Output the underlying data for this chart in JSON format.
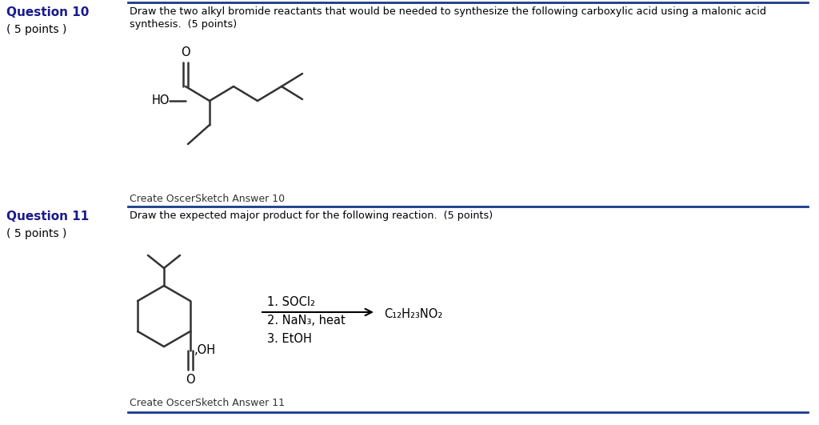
{
  "background_color": "#ffffff",
  "line_color": "#1a3a8a",
  "question10_label": "Question 10",
  "question10_points": "( 5 points )",
  "question10_text_line1": "Draw the two alkyl bromide reactants that would be needed to synthesize the following carboxylic acid using a malonic acid",
  "question10_text_line2": "synthesis.  (5 points)",
  "question10_sketch_label": "Create OscerSketch Answer 10",
  "question11_label": "Question 11",
  "question11_points": "( 5 points )",
  "question11_text": "Draw the expected major product for the following reaction.  (5 points)",
  "question11_sketch_label": "Create OscerSketch Answer 11",
  "reaction_step1": "1. SOCl₂",
  "reaction_step2": "2. NaN₃, heat",
  "reaction_step3": "3. EtOH",
  "reaction_product": "C₁₂H₂₃NO₂",
  "label_color": "#1a1a8c",
  "text_color": "#000000",
  "gray_text_color": "#333333"
}
